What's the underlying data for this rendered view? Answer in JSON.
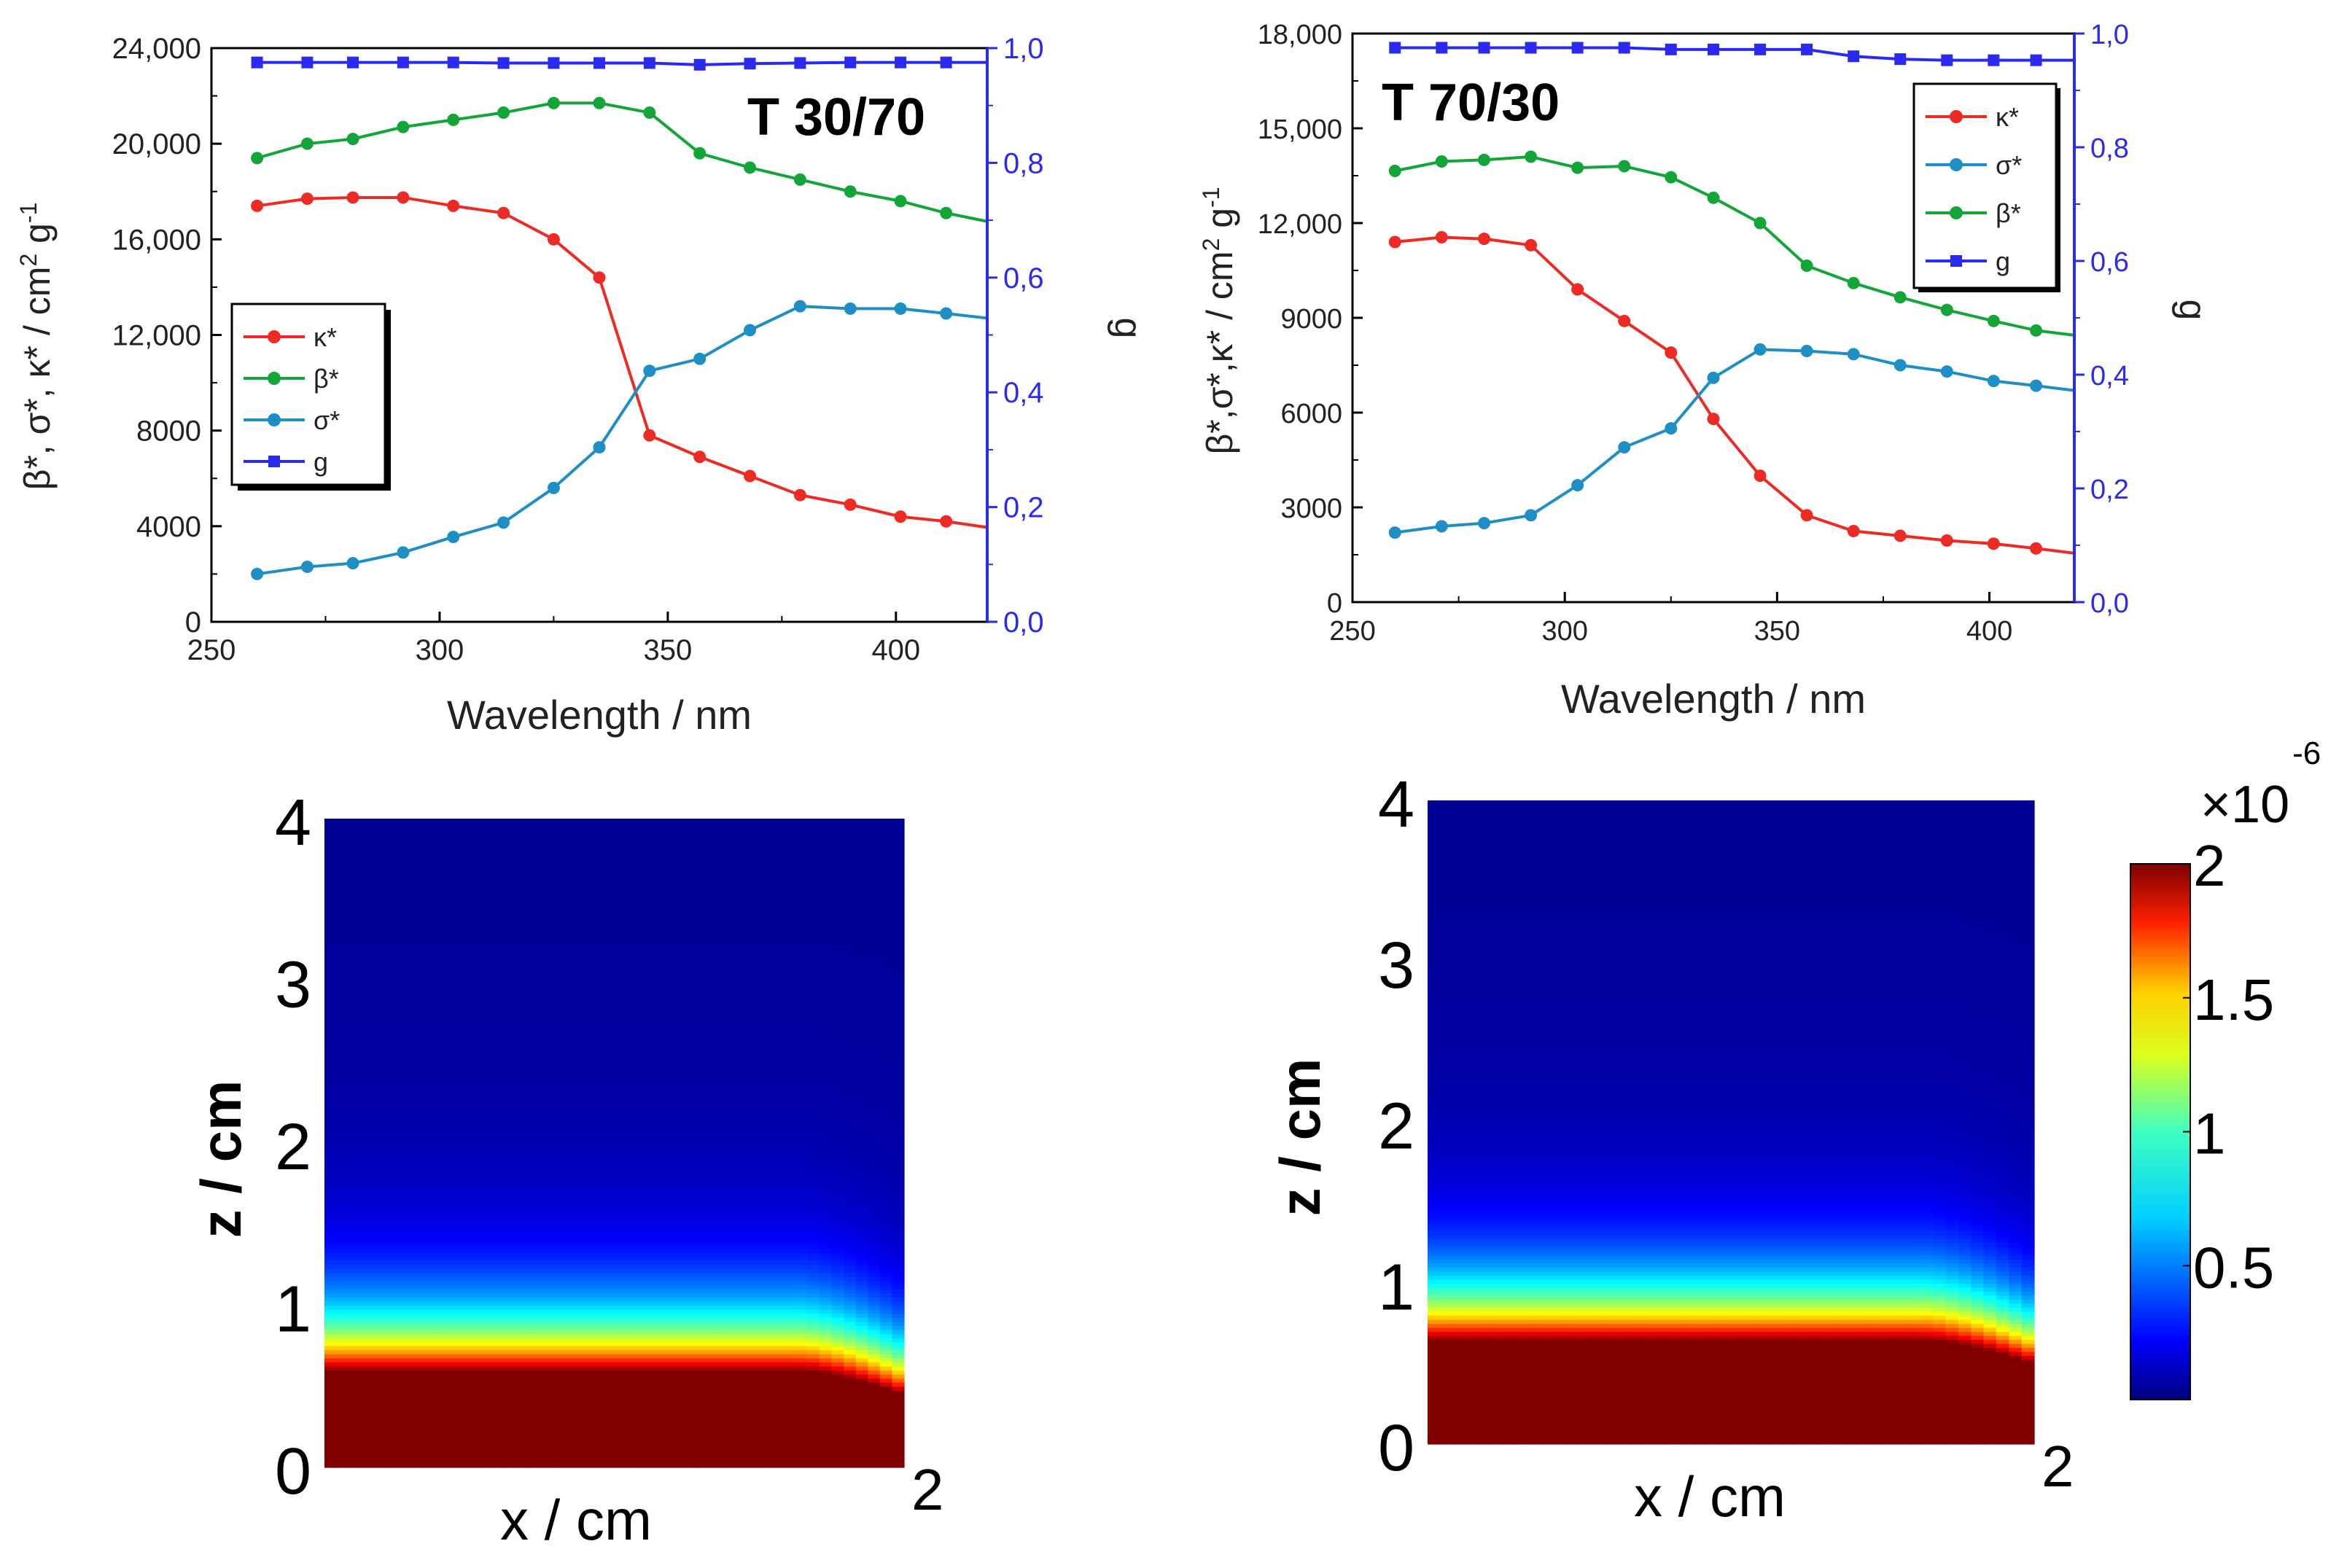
{
  "chart_data": [
    {
      "id": "t3070",
      "type": "line",
      "title": "T 30/70",
      "xlabel": "Wavelength / nm",
      "ylabel": "β*, σ*, κ* / cm² g⁻¹",
      "ylabel_parts": [
        "β*, σ*, κ* / cm",
        "2",
        " g",
        "-1"
      ],
      "y2label": "g",
      "xlim": [
        250,
        420
      ],
      "ylim": [
        0,
        24000
      ],
      "y2lim": [
        0,
        1
      ],
      "xticks": [
        250,
        300,
        350,
        400
      ],
      "yticks": [
        0,
        4000,
        8000,
        12000,
        16000,
        20000,
        24000
      ],
      "ytick_labels": [
        "0",
        "4000",
        "8000",
        "12,000",
        "16,000",
        "20,000",
        "24,000"
      ],
      "y2ticks": [
        0,
        0.2,
        0.4,
        0.6,
        0.8,
        1.0
      ],
      "y2tick_labels": [
        "0,0",
        "0,2",
        "0,4",
        "0,6",
        "0,8",
        "1,0"
      ],
      "legend_position": "middle-left",
      "legend": [
        "κ*",
        "β*",
        "σ*",
        "g"
      ],
      "x": [
        260,
        271,
        281,
        292,
        303,
        314,
        325,
        335,
        346,
        357,
        368,
        379,
        390,
        401,
        411
      ],
      "series": [
        {
          "name": "κ*",
          "color": "#ee2a24",
          "marker": "circle",
          "axis": "left",
          "values": [
            17400,
            17700,
            17750,
            17750,
            17400,
            17100,
            16000,
            14400,
            7800,
            6900,
            6100,
            5300,
            4900,
            4400,
            4200
          ],
          "x_end": 420,
          "y_end": 3950
        },
        {
          "name": "β*",
          "color": "#13a538",
          "marker": "circle",
          "axis": "left",
          "values": [
            19400,
            20000,
            20200,
            20700,
            21000,
            21300,
            21700,
            21700,
            21300,
            19600,
            19000,
            18500,
            18000,
            17600,
            17100
          ],
          "x_end": 420,
          "y_end": 16750
        },
        {
          "name": "σ*",
          "color": "#1e8fc4",
          "marker": "circle",
          "axis": "left",
          "values": [
            2000,
            2300,
            2450,
            2900,
            3550,
            4150,
            5600,
            7300,
            10500,
            11000,
            12200,
            13200,
            13100,
            13100,
            12900
          ],
          "x_end": 420,
          "y_end": 12700
        },
        {
          "name": "g",
          "color": "#2a2af0",
          "marker": "square",
          "axis": "right",
          "values": [
            0.975,
            0.975,
            0.975,
            0.975,
            0.975,
            0.974,
            0.974,
            0.974,
            0.974,
            0.971,
            0.973,
            0.974,
            0.975,
            0.975,
            0.975
          ],
          "x_end": 420,
          "y_end": 0.975
        }
      ]
    },
    {
      "id": "t7030",
      "type": "line",
      "title": "T 70/30",
      "xlabel": "Wavelength / nm",
      "ylabel": "β*,σ*,κ* / cm² g⁻¹",
      "ylabel_parts": [
        "β*,σ*,κ* / cm",
        "2",
        " g",
        "-1"
      ],
      "y2label": "g",
      "xlim": [
        250,
        420
      ],
      "ylim": [
        0,
        18000
      ],
      "y2lim": [
        0,
        1
      ],
      "xticks": [
        250,
        300,
        350,
        400
      ],
      "yticks": [
        0,
        3000,
        6000,
        9000,
        12000,
        15000,
        18000
      ],
      "ytick_labels": [
        "0",
        "3000",
        "6000",
        "9000",
        "12,000",
        "15,000",
        "18,000"
      ],
      "y2ticks": [
        0,
        0.2,
        0.4,
        0.6,
        0.8,
        1.0
      ],
      "y2tick_labels": [
        "0,0",
        "0,2",
        "0,4",
        "0,6",
        "0,8",
        "1,0"
      ],
      "legend_position": "top-right",
      "legend": [
        "κ*",
        "σ*",
        "β*",
        "g"
      ],
      "x": [
        260,
        271,
        281,
        292,
        303,
        314,
        325,
        335,
        346,
        357,
        368,
        379,
        390,
        401,
        411
      ],
      "series": [
        {
          "name": "κ*",
          "color": "#ee2a24",
          "marker": "circle",
          "axis": "left",
          "values": [
            11400,
            11550,
            11500,
            11300,
            9900,
            8900,
            7900,
            5800,
            4000,
            2750,
            2250,
            2100,
            1950,
            1850,
            1700
          ],
          "x_end": 420,
          "y_end": 1550
        },
        {
          "name": "σ*",
          "color": "#1e8fc4",
          "marker": "circle",
          "axis": "left",
          "values": [
            2200,
            2400,
            2500,
            2750,
            3700,
            4900,
            5500,
            7100,
            8000,
            7950,
            7850,
            7500,
            7300,
            7000,
            6850
          ],
          "x_end": 420,
          "y_end": 6700
        },
        {
          "name": "β*",
          "color": "#13a538",
          "marker": "circle",
          "axis": "left",
          "values": [
            13650,
            13950,
            14000,
            14100,
            13750,
            13800,
            13450,
            12800,
            12000,
            10650,
            10100,
            9650,
            9250,
            8900,
            8600
          ],
          "x_end": 420,
          "y_end": 8450
        },
        {
          "name": "g",
          "color": "#2a2af0",
          "marker": "square",
          "axis": "right",
          "values": [
            0.975,
            0.975,
            0.975,
            0.975,
            0.975,
            0.975,
            0.972,
            0.972,
            0.972,
            0.972,
            0.96,
            0.955,
            0.953,
            0.953,
            0.953
          ],
          "x_end": 420,
          "y_end": 0.953
        }
      ]
    },
    {
      "id": "heatmap-left",
      "type": "heatmap",
      "xlabel": "x / cm",
      "ylabel": "z / cm",
      "xlim": [
        0,
        2
      ],
      "ylim": [
        0,
        4
      ],
      "xtick_labels": [
        "0",
        "2"
      ],
      "ytick_labels": [
        "0",
        "1",
        "2",
        "3",
        "4"
      ],
      "saturation_depth": 0.6,
      "edge_saturation_depth": 0.45
    },
    {
      "id": "heatmap-right",
      "type": "heatmap",
      "xlabel": "x / cm",
      "ylabel": "z / cm",
      "xlim": [
        0,
        2
      ],
      "ylim": [
        0,
        4
      ],
      "xtick_labels": [
        "0",
        "2"
      ],
      "ytick_labels": [
        "0",
        "1",
        "2",
        "3",
        "4"
      ],
      "saturation_depth": 0.65,
      "edge_saturation_depth": 0.5,
      "colorbar": {
        "multiplier_base": "×10",
        "multiplier_exp": "-6",
        "range": [
          0,
          2e-06
        ],
        "ticks": [
          0.5,
          1,
          1.5,
          2
        ],
        "tick_labels": [
          "0.5",
          "1",
          "1.5",
          "2"
        ]
      }
    }
  ]
}
